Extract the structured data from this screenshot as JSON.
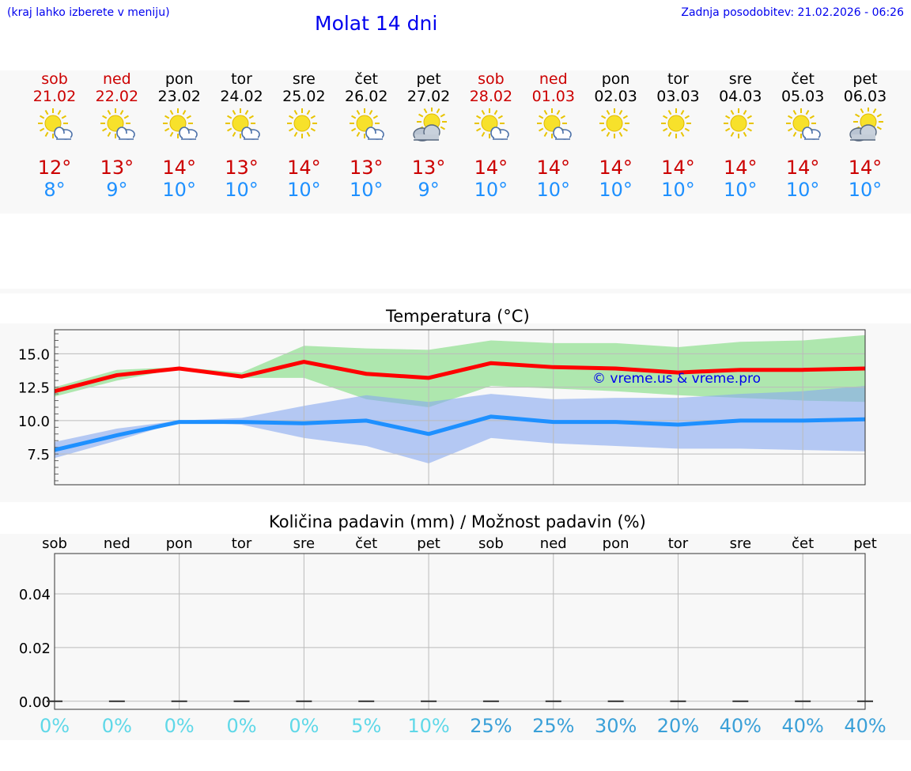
{
  "header": {
    "left_note": "(kraj lahko izberete v meniju)",
    "title": "Molat 14 dni",
    "updated": "Zadnja posodobitev: 21.02.2026 - 06:26"
  },
  "days": [
    {
      "name": "sob",
      "date": "21.02",
      "weekend": true,
      "icon": "sun-cloud-icon",
      "tmax": "12°",
      "tmin": "8°"
    },
    {
      "name": "ned",
      "date": "22.02",
      "weekend": true,
      "icon": "sun-cloud-icon",
      "tmax": "13°",
      "tmin": "9°"
    },
    {
      "name": "pon",
      "date": "23.02",
      "weekend": false,
      "icon": "sun-cloud-icon",
      "tmax": "14°",
      "tmin": "10°"
    },
    {
      "name": "tor",
      "date": "24.02",
      "weekend": false,
      "icon": "sun-cloud-icon",
      "tmax": "13°",
      "tmin": "10°"
    },
    {
      "name": "sre",
      "date": "25.02",
      "weekend": false,
      "icon": "sun-icon",
      "tmax": "14°",
      "tmin": "10°"
    },
    {
      "name": "čet",
      "date": "26.02",
      "weekend": false,
      "icon": "sun-cloud-icon",
      "tmax": "13°",
      "tmin": "10°"
    },
    {
      "name": "pet",
      "date": "27.02",
      "weekend": false,
      "icon": "cloud-sun-icon",
      "tmax": "13°",
      "tmin": "9°"
    },
    {
      "name": "sob",
      "date": "28.02",
      "weekend": true,
      "icon": "sun-cloud-icon",
      "tmax": "14°",
      "tmin": "10°"
    },
    {
      "name": "ned",
      "date": "01.03",
      "weekend": true,
      "icon": "sun-cloud-icon",
      "tmax": "14°",
      "tmin": "10°"
    },
    {
      "name": "pon",
      "date": "02.03",
      "weekend": false,
      "icon": "sun-icon",
      "tmax": "14°",
      "tmin": "10°"
    },
    {
      "name": "tor",
      "date": "03.03",
      "weekend": false,
      "icon": "sun-icon",
      "tmax": "14°",
      "tmin": "10°"
    },
    {
      "name": "sre",
      "date": "04.03",
      "weekend": false,
      "icon": "sun-icon",
      "tmax": "14°",
      "tmin": "10°"
    },
    {
      "name": "čet",
      "date": "05.03",
      "weekend": false,
      "icon": "sun-cloud-icon",
      "tmax": "14°",
      "tmin": "10°"
    },
    {
      "name": "pet",
      "date": "06.03",
      "weekend": false,
      "icon": "cloud-sun-icon",
      "tmax": "14°",
      "tmin": "10°"
    }
  ],
  "chart_data": [
    {
      "type": "line",
      "title": "Temperatura (°C)",
      "ylim": [
        5.2,
        16.8
      ],
      "yticks": [
        "15.0",
        "12.5",
        "10.0",
        "7.5"
      ],
      "ytick_values": [
        15.0,
        12.5,
        10.0,
        7.5
      ],
      "watermark": "© vreme.us & vreme.pro",
      "series": [
        {
          "name": "max",
          "color": "#ff0000",
          "values": [
            12.2,
            13.4,
            13.9,
            13.3,
            14.4,
            13.5,
            13.2,
            14.3,
            14.0,
            13.9,
            13.6,
            13.8,
            13.8,
            13.9
          ]
        },
        {
          "name": "min",
          "color": "#1e90ff",
          "values": [
            7.8,
            8.9,
            9.9,
            9.9,
            9.8,
            10.0,
            9.0,
            10.3,
            9.9,
            9.9,
            9.7,
            10.0,
            10.0,
            10.1
          ]
        }
      ],
      "bands": [
        {
          "name": "max-range",
          "color": "#7ddc7d",
          "upper": [
            12.5,
            13.8,
            14.0,
            13.6,
            15.6,
            15.4,
            15.3,
            16.0,
            15.8,
            15.8,
            15.5,
            15.9,
            16.0,
            16.4
          ],
          "lower": [
            11.8,
            13.0,
            13.9,
            13.2,
            13.2,
            11.6,
            11.0,
            12.6,
            12.4,
            12.2,
            11.9,
            11.7,
            11.5,
            11.4
          ]
        },
        {
          "name": "min-range",
          "color": "#87a9f0",
          "upper": [
            8.4,
            9.4,
            10.0,
            10.2,
            11.1,
            11.9,
            11.4,
            12.0,
            11.6,
            11.7,
            11.7,
            12.0,
            12.2,
            12.6
          ],
          "lower": [
            7.2,
            8.5,
            9.9,
            9.7,
            8.7,
            8.1,
            6.8,
            8.7,
            8.3,
            8.1,
            7.9,
            7.9,
            7.8,
            7.7
          ]
        }
      ]
    },
    {
      "type": "bar",
      "title": "Količina padavin (mm) / Možnost padavin (%)",
      "categories": [
        "sob",
        "ned",
        "pon",
        "tor",
        "sre",
        "čet",
        "pet",
        "sob",
        "ned",
        "pon",
        "tor",
        "sre",
        "čet",
        "pet"
      ],
      "values": [
        0,
        0,
        0,
        0,
        0,
        0,
        0,
        0,
        0,
        0,
        0,
        0,
        0,
        0
      ],
      "ylim": [
        -0.003,
        0.055
      ],
      "yticks": [
        "0.04",
        "0.02",
        "0.00"
      ],
      "ytick_values": [
        0.04,
        0.02,
        0.0
      ],
      "probability_labels": [
        "0%",
        "0%",
        "0%",
        "0%",
        "0%",
        "5%",
        "10%",
        "25%",
        "25%",
        "30%",
        "20%",
        "40%",
        "40%",
        "40%"
      ],
      "probability_values": [
        0,
        0,
        0,
        0,
        0,
        5,
        10,
        25,
        25,
        30,
        20,
        40,
        40,
        40
      ]
    }
  ]
}
